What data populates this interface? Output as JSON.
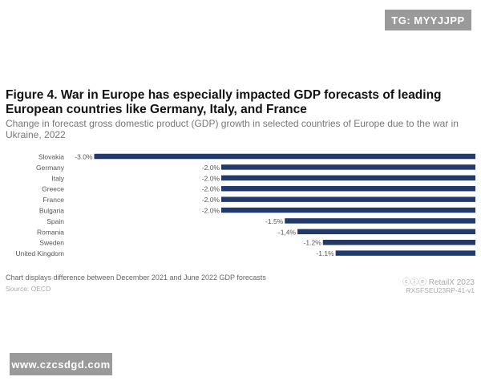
{
  "watermarks": {
    "top": "TG: MYYJJPP",
    "bottom": "www.czcsdgd.com"
  },
  "colors": {
    "bar": "#213a6b",
    "text": "#555555"
  },
  "chart_data": {
    "type": "bar",
    "orientation": "horizontal",
    "title": "Figure 4. War in Europe has especially impacted GDP forecasts of leading European countries like Germany, Italy, and France",
    "subtitle": "Change in forecast gross domestic product (GDP) growth in selected countries of Europe due to the war in Ukraine, 2022",
    "categories": [
      "Slovakia",
      "Germany",
      "Italy",
      "Greece",
      "France",
      "Bulgaria",
      "Spain",
      "Romania",
      "Sweden",
      "United Kingdom"
    ],
    "values": [
      -3.0,
      -2.0,
      -2.0,
      -2.0,
      -2.0,
      -2.0,
      -1.5,
      -1.4,
      -1.2,
      -1.1
    ],
    "labels": [
      "-3.0%",
      "-2.0%",
      "-2.0%",
      "-2.0%",
      "-2.0%",
      "-2.0%",
      "-1.5%",
      "-1,4%",
      "-1.2%",
      "-1.1%"
    ],
    "xlim": [
      -3.0,
      0
    ],
    "grid": false
  },
  "footer": {
    "note": "Chart displays difference between December 2021 and June 2022 GDP forecasts",
    "source": "Source: OECD",
    "brand": "ⓒⓘⓔ RetailX 2023",
    "code": "RXSFSEU23RP-41-v1"
  }
}
